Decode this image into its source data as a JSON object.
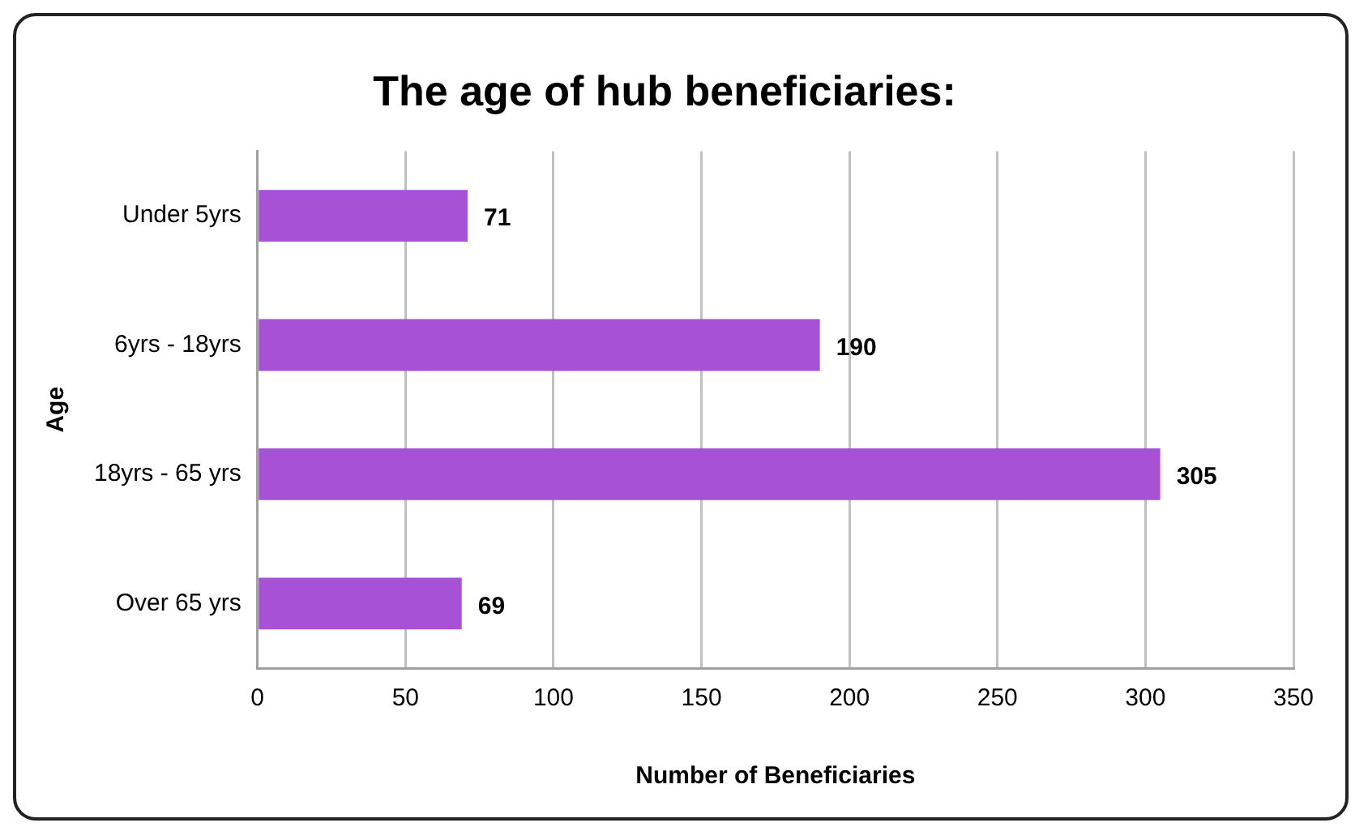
{
  "chart_data": {
    "type": "bar",
    "orientation": "horizontal",
    "title": "The age of hub beneficiaries:",
    "xlabel": "Number of Beneficiaries",
    "ylabel": "Age",
    "categories": [
      "Under 5yrs",
      "6yrs - 18yrs",
      "18yrs - 65 yrs",
      "Over 65 yrs"
    ],
    "values": [
      71,
      190,
      305,
      69
    ],
    "color": "#a752d6",
    "xlim": [
      0,
      350
    ],
    "xticks": [
      0,
      50,
      100,
      150,
      200,
      250,
      300,
      350
    ],
    "grid": "x",
    "data_labels": true,
    "legend": false
  }
}
